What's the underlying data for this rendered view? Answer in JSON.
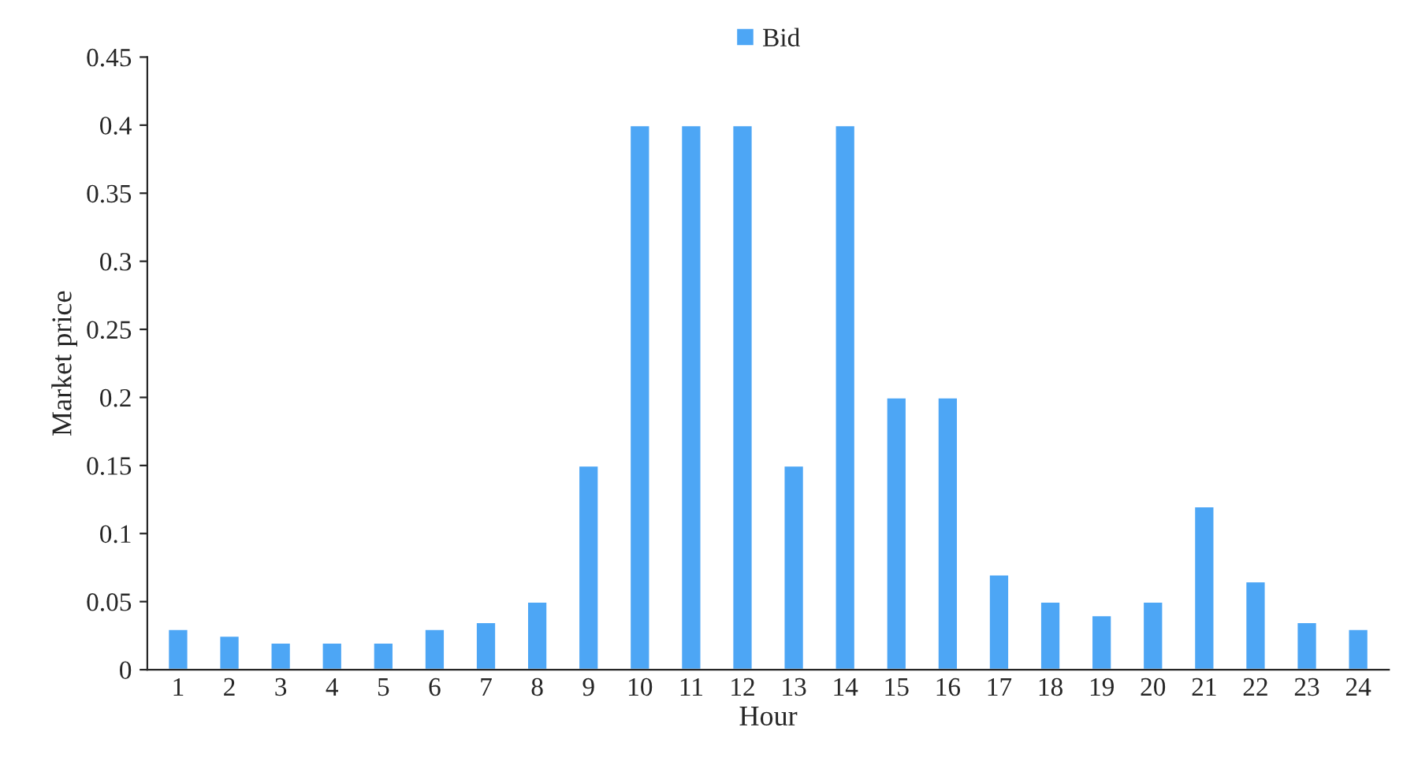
{
  "chart_data": {
    "type": "bar",
    "xlabel": "Hour",
    "ylabel": "Market price",
    "categories": [
      "1",
      "2",
      "3",
      "4",
      "5",
      "6",
      "7",
      "8",
      "9",
      "10",
      "11",
      "12",
      "13",
      "14",
      "15",
      "16",
      "17",
      "18",
      "19",
      "20",
      "21",
      "22",
      "23",
      "24"
    ],
    "series": [
      {
        "name": "Bid",
        "color": "#4da6f5",
        "values": [
          0.03,
          0.025,
          0.02,
          0.02,
          0.02,
          0.03,
          0.035,
          0.05,
          0.15,
          0.4,
          0.4,
          0.4,
          0.15,
          0.4,
          0.2,
          0.2,
          0.07,
          0.05,
          0.04,
          0.05,
          0.12,
          0.065,
          0.035,
          0.03
        ]
      }
    ],
    "ylim": [
      0,
      0.45
    ],
    "yticks": [
      0,
      0.05,
      0.1,
      0.15,
      0.2,
      0.25,
      0.3,
      0.35,
      0.4,
      0.45
    ],
    "grid": false,
    "legend": "top"
  }
}
